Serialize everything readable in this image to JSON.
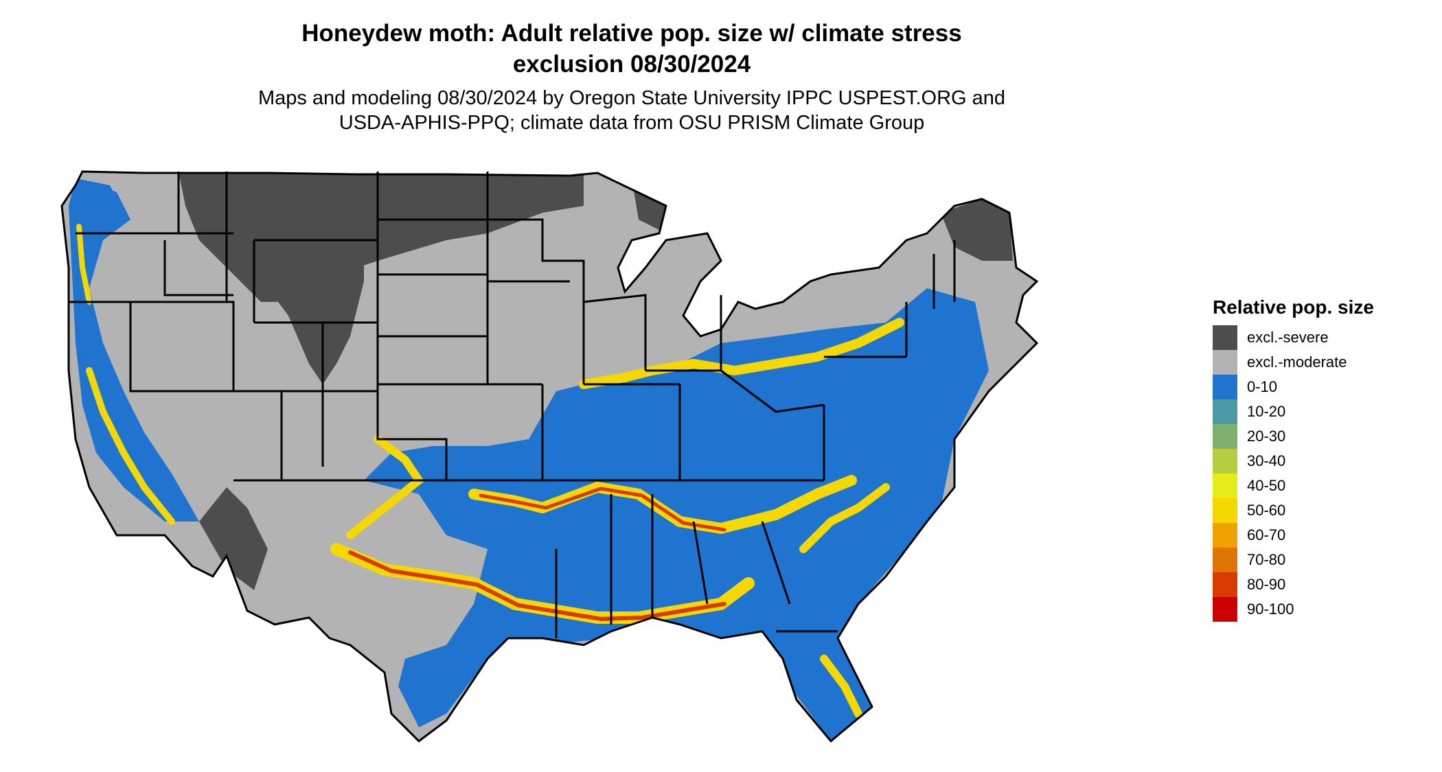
{
  "title_line1": "Honeydew moth: Adult relative pop. size w/ climate stress",
  "title_line2": "exclusion 08/30/2024",
  "subtitle_line1": "Maps and modeling 08/30/2024 by Oregon State University IPPC USPEST.ORG and",
  "subtitle_line2": "USDA-APHIS-PPQ; climate data from OSU PRISM Climate Group",
  "legend": {
    "title": "Relative pop. size",
    "items": [
      {
        "label": "excl.-severe",
        "color": "#4d4d4d"
      },
      {
        "label": "excl.-moderate",
        "color": "#b3b3b3"
      },
      {
        "label": "0-10",
        "color": "#1f74d0"
      },
      {
        "label": "10-20",
        "color": "#4a9aa6"
      },
      {
        "label": "20-30",
        "color": "#7fb06e"
      },
      {
        "label": "30-40",
        "color": "#b5cf3f"
      },
      {
        "label": "40-50",
        "color": "#e6ec17"
      },
      {
        "label": "50-60",
        "color": "#f5d800"
      },
      {
        "label": "60-70",
        "color": "#eea300"
      },
      {
        "label": "70-80",
        "color": "#e07400"
      },
      {
        "label": "80-90",
        "color": "#d83b00"
      },
      {
        "label": "90-100",
        "color": "#cc0000"
      }
    ]
  },
  "map": {
    "colors": {
      "severe": "#4d4d4d",
      "moderate": "#b3b3b3",
      "low": "#1f74d0",
      "mid": "#f5d800",
      "high": "#d83b00",
      "border": "#000000"
    }
  }
}
